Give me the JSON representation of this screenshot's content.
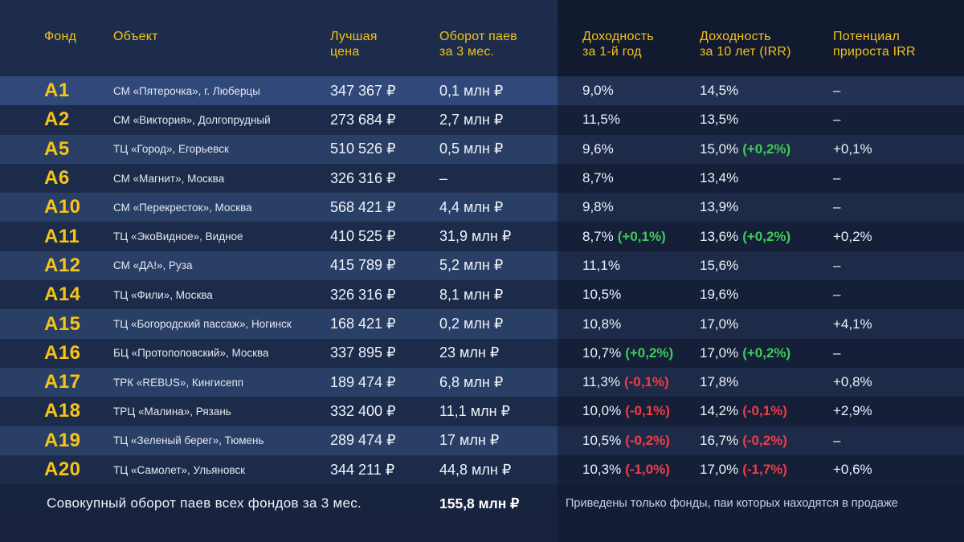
{
  "headers": {
    "fund": "Фонд",
    "object": "Объект",
    "best_price": "Лучшая\nцена",
    "turnover": "Оборот паев\nза 3 мес.",
    "yield_1y": "Доходность\nза 1-й год",
    "yield_10y": "Доходность\nза 10 лет (IRR)",
    "potential": "Потенциал\nприроста IRR"
  },
  "rows": [
    {
      "fund": "А1",
      "object": "СМ «Пятерочка», г. Люберцы",
      "price": "347 367 ₽",
      "turnover": "0,1 млн ₽",
      "y1": "9,0%",
      "y1_delta": "",
      "y10": "14,5%",
      "y10_delta": "",
      "potential": "–"
    },
    {
      "fund": "А2",
      "object": "СМ «Виктория», Долгопрудный",
      "price": "273 684 ₽",
      "turnover": "2,7 млн ₽",
      "y1": "11,5%",
      "y1_delta": "",
      "y10": "13,5%",
      "y10_delta": "",
      "potential": "–"
    },
    {
      "fund": "А5",
      "object": "ТЦ «Город», Егорьевск",
      "price": "510 526 ₽",
      "turnover": "0,5 млн ₽",
      "y1": "9,6%",
      "y1_delta": "",
      "y10": "15,0%",
      "y10_delta": "(+0,2%)",
      "potential": "+0,1%"
    },
    {
      "fund": "А6",
      "object": "СМ «Магнит», Москва",
      "price": "326 316 ₽",
      "turnover": "–",
      "y1": "8,7%",
      "y1_delta": "",
      "y10": "13,4%",
      "y10_delta": "",
      "potential": "–"
    },
    {
      "fund": "А10",
      "object": "СМ «Перекресток», Москва",
      "price": "568 421 ₽",
      "turnover": "4,4 млн ₽",
      "y1": "9,8%",
      "y1_delta": "",
      "y10": "13,9%",
      "y10_delta": "",
      "potential": "–"
    },
    {
      "fund": "А11",
      "object": "ТЦ «ЭкоВидное», Видное",
      "price": "410 525 ₽",
      "turnover": "31,9 млн ₽",
      "y1": "8,7%",
      "y1_delta": "(+0,1%)",
      "y10": "13,6%",
      "y10_delta": "(+0,2%)",
      "potential": "+0,2%"
    },
    {
      "fund": "А12",
      "object": "СМ «ДА!», Руза",
      "price": "415 789 ₽",
      "turnover": "5,2 млн ₽",
      "y1": "11,1%",
      "y1_delta": "",
      "y10": "15,6%",
      "y10_delta": "",
      "potential": "–"
    },
    {
      "fund": "А14",
      "object": "ТЦ «Фили», Москва",
      "price": "326 316 ₽",
      "turnover": "8,1 млн ₽",
      "y1": "10,5%",
      "y1_delta": "",
      "y10": "19,6%",
      "y10_delta": "",
      "potential": "–"
    },
    {
      "fund": "А15",
      "object": "ТЦ «Богородский пассаж», Ногинск",
      "price": "168 421 ₽",
      "turnover": "0,2 млн ₽",
      "y1": "10,8%",
      "y1_delta": "",
      "y10": "17,0%",
      "y10_delta": "",
      "potential": "+4,1%"
    },
    {
      "fund": "А16",
      "object": "БЦ «Протопоповский», Москва",
      "price": "337 895 ₽",
      "turnover": "23 млн ₽",
      "y1": "10,7%",
      "y1_delta": "(+0,2%)",
      "y10": "17,0%",
      "y10_delta": "(+0,2%)",
      "potential": "–"
    },
    {
      "fund": "А17",
      "object": "ТРК «REBUS», Кингисепп",
      "price": "189 474 ₽",
      "turnover": "6,8 млн ₽",
      "y1": "11,3%",
      "y1_delta": "(-0,1%)",
      "y10": "17,8%",
      "y10_delta": "",
      "potential": "+0,8%"
    },
    {
      "fund": "А18",
      "object": "ТРЦ «Малина», Рязань",
      "price": "332 400 ₽",
      "turnover": "11,1 млн ₽",
      "y1": "10,0%",
      "y1_delta": "(-0,1%)",
      "y10": "14,2%",
      "y10_delta": "(-0,1%)",
      "potential": "+2,9%"
    },
    {
      "fund": "А19",
      "object": "ТЦ «Зеленый берег», Тюмень",
      "price": "289 474 ₽",
      "turnover": "17 млн ₽",
      "y1": "10,5%",
      "y1_delta": "(-0,2%)",
      "y10": "16,7%",
      "y10_delta": "(-0,2%)",
      "potential": "–"
    },
    {
      "fund": "А20",
      "object": "ТЦ «Самолет», Ульяновск",
      "price": "344 211 ₽",
      "turnover": "44,8 млн ₽",
      "y1": "10,3%",
      "y1_delta": "(-1,0%)",
      "y10": "17,0%",
      "y10_delta": "(-1,7%)",
      "potential": "+0,6%"
    }
  ],
  "footer": {
    "total_label": "Совокупный оборот паев всех фондов за 3 мес.",
    "total_value": "155,8 млн ₽",
    "note": "Приведены только фонды, паи которых находятся в продаже"
  },
  "colors": {
    "accent": "#f5c414",
    "positive": "#3ecb5a",
    "negative": "#ee3d47"
  }
}
